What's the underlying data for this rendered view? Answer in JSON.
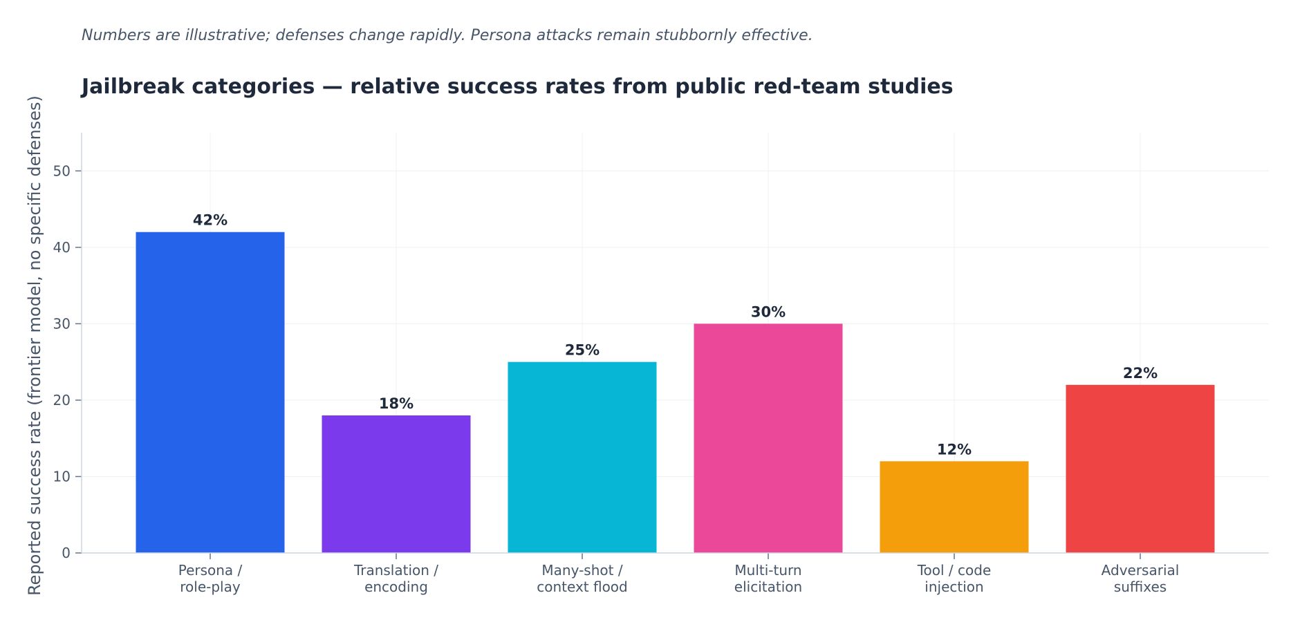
{
  "chart_data": {
    "type": "bar",
    "subtitle": "Numbers are illustrative; defenses change rapidly. Persona attacks remain stubbornly effective.",
    "title": "Jailbreak categories — relative success rates from public red-team studies",
    "ylabel": "Reported success rate (frontier model, no specific defenses)",
    "xlabel": "",
    "ylim": [
      0,
      55
    ],
    "yticks": [
      0,
      10,
      20,
      30,
      40,
      50
    ],
    "grid": true,
    "categories": [
      [
        "Persona /",
        "role-play"
      ],
      [
        "Translation /",
        "encoding"
      ],
      [
        "Many-shot /",
        "context flood"
      ],
      [
        "Multi-turn",
        "elicitation"
      ],
      [
        "Tool / code",
        "injection"
      ],
      [
        "Adversarial",
        "suffixes"
      ]
    ],
    "values": [
      42,
      18,
      25,
      30,
      12,
      22
    ],
    "value_labels": [
      "42%",
      "18%",
      "25%",
      "30%",
      "12%",
      "22%"
    ],
    "colors": [
      "#2563eb",
      "#7c3aed",
      "#06b6d4",
      "#ec4899",
      "#f59e0b",
      "#ef4444"
    ]
  }
}
